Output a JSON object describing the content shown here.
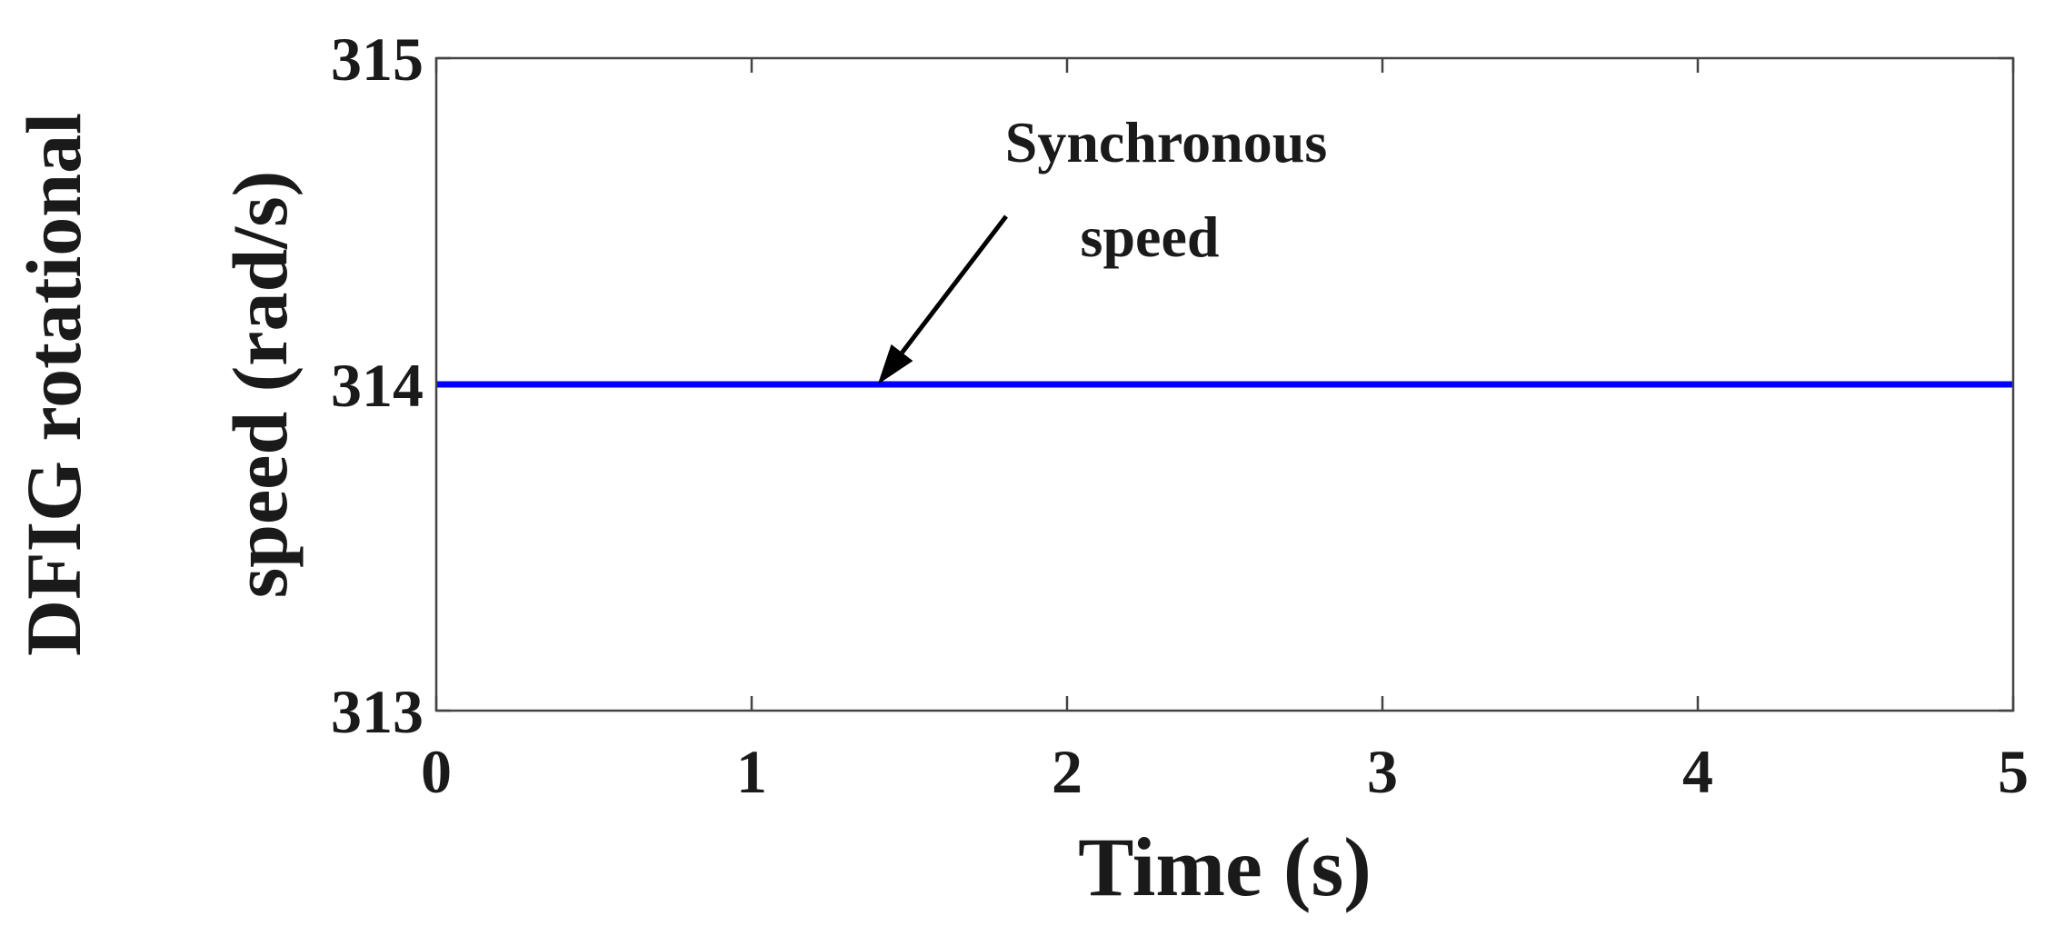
{
  "chart_data": {
    "type": "line",
    "title": "",
    "xlabel": "Time (s)",
    "ylabel_line1": "DFIG rotational",
    "ylabel_line2": "speed (rad/s)",
    "xlim": [
      0,
      5
    ],
    "ylim": [
      313,
      315
    ],
    "xticks": [
      0,
      1,
      2,
      3,
      4,
      5
    ],
    "yticks": [
      313,
      314,
      315
    ],
    "grid": false,
    "series": [
      {
        "color": "#0000ff",
        "x": [
          0,
          5
        ],
        "y": [
          314,
          314
        ]
      }
    ],
    "annotation": {
      "line1": "Synchronous",
      "line2": "speed",
      "arrow_to": {
        "x": 1.4,
        "y": 314
      }
    }
  }
}
